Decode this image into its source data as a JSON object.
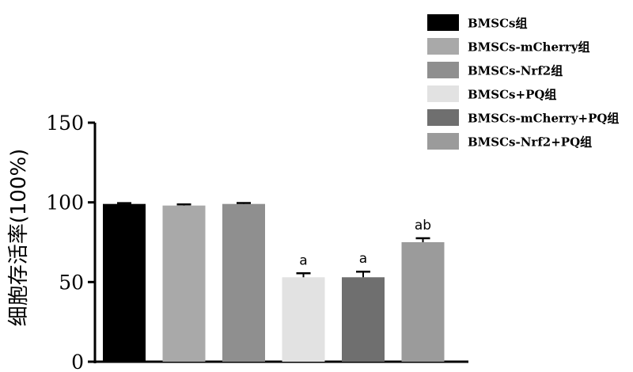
{
  "chart_data": {
    "type": "bar",
    "title": "",
    "xlabel": "",
    "ylabel": "细胞存活率(100%)",
    "ylim": [
      0,
      150
    ],
    "yticks": [
      0,
      50,
      100,
      150
    ],
    "grid": false,
    "legend_position": "top-right",
    "series": [
      {
        "name": "BMSCs组",
        "value": 99,
        "error": 0.5,
        "annotation": "",
        "color": "#000000"
      },
      {
        "name": "BMSCs-mCherry组",
        "value": 98,
        "error": 0.7,
        "annotation": "",
        "color": "#a9a9a9"
      },
      {
        "name": "BMSCs-Nrf2组",
        "value": 99,
        "error": 0.6,
        "annotation": "",
        "color": "#8f8f8f"
      },
      {
        "name": "BMSCs+PQ组",
        "value": 53,
        "error": 2.5,
        "annotation": "a",
        "color": "#e2e2e2"
      },
      {
        "name": "BMSCs-mCherry+PQ组",
        "value": 53,
        "error": 3.5,
        "annotation": "a",
        "color": "#6f6f6f"
      },
      {
        "name": "BMSCs-Nrf2+PQ组",
        "value": 75,
        "error": 2.5,
        "annotation": "ab",
        "color": "#9b9b9b"
      }
    ]
  }
}
